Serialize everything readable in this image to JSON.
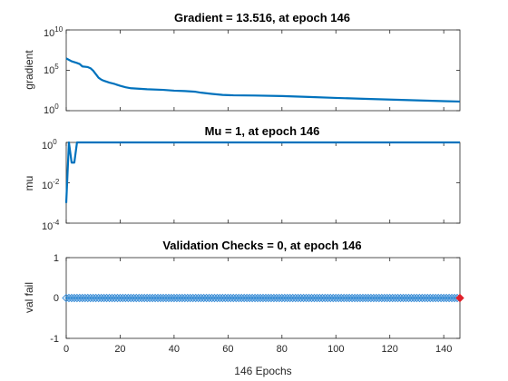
{
  "figure": {
    "background": "#ffffff"
  },
  "colors": {
    "line": "#0072bd",
    "marker_edge": "#3f90d8",
    "marker_last": "#e0202a"
  },
  "chart_data": [
    {
      "type": "line",
      "title": "Gradient = 13.516, at epoch 146",
      "ylabel": "gradient",
      "xlabel": "",
      "xlim": [
        0,
        146
      ],
      "ylim": [
        1,
        10000000000
      ],
      "yscale": "log",
      "xticks": [
        0,
        20,
        40,
        60,
        80,
        100,
        120,
        140
      ],
      "xtick_labels": [
        "",
        "",
        "",
        "",
        "",
        "",
        "",
        ""
      ],
      "yticks": [
        1,
        100000,
        10000000000
      ],
      "ytick_labels": [
        {
          "base": "10",
          "exp": "0"
        },
        {
          "base": "10",
          "exp": "5"
        },
        {
          "base": "10",
          "exp": "10"
        }
      ],
      "grid": false,
      "series": [
        {
          "color": "#0072bd",
          "x": [
            0,
            2,
            4,
            5,
            6,
            8,
            9,
            10,
            12,
            13,
            14,
            16,
            18,
            20,
            22,
            24,
            30,
            36,
            40,
            44,
            48,
            50,
            54,
            58,
            62,
            70,
            80,
            90,
            100,
            110,
            120,
            130,
            140,
            146
          ],
          "y": [
            3000000,
            1300000,
            800000,
            600000,
            300000,
            250000,
            180000,
            90000,
            12000,
            7000,
            5000,
            3000,
            2000,
            1200,
            800,
            600,
            450,
            380,
            300,
            270,
            220,
            170,
            120,
            90,
            80,
            75,
            65,
            50,
            38,
            30,
            24,
            19,
            15,
            13.516
          ]
        }
      ]
    },
    {
      "type": "line",
      "title": "Mu = 1, at epoch 146",
      "ylabel": "mu",
      "xlabel": "",
      "xlim": [
        0,
        146
      ],
      "ylim": [
        0.0001,
        1
      ],
      "yscale": "log",
      "xticks": [
        0,
        20,
        40,
        60,
        80,
        100,
        120,
        140
      ],
      "xtick_labels": [
        "",
        "",
        "",
        "",
        "",
        "",
        "",
        ""
      ],
      "yticks": [
        0.0001,
        0.01,
        1
      ],
      "ytick_labels": [
        {
          "base": "10",
          "exp": "-4"
        },
        {
          "base": "10",
          "exp": "-2"
        },
        {
          "base": "10",
          "exp": "0"
        }
      ],
      "grid": false,
      "series": [
        {
          "color": "#0072bd",
          "x": [
            0,
            1,
            2,
            3,
            4,
            5,
            6,
            146
          ],
          "y": [
            0.001,
            1,
            0.1,
            0.1,
            1,
            1,
            1,
            1
          ]
        }
      ]
    },
    {
      "type": "line",
      "title": "Validation Checks = 0, at epoch 146",
      "ylabel": "val fail",
      "xlabel": "146 Epochs",
      "xlim": [
        0,
        146
      ],
      "ylim": [
        -1,
        1
      ],
      "yscale": "linear",
      "xticks": [
        0,
        20,
        40,
        60,
        80,
        100,
        120,
        140
      ],
      "xtick_labels": [
        "0",
        "20",
        "40",
        "60",
        "80",
        "100",
        "120",
        "140"
      ],
      "yticks": [
        -1,
        0,
        1
      ],
      "ytick_labels": [
        "-1",
        "0",
        "1"
      ],
      "grid": false,
      "series": [
        {
          "color": "#0072bd",
          "markers": true,
          "marker_last_color": "#e0202a",
          "x_start": 0,
          "x_end": 146,
          "values": [
            0
          ]
        }
      ]
    }
  ]
}
